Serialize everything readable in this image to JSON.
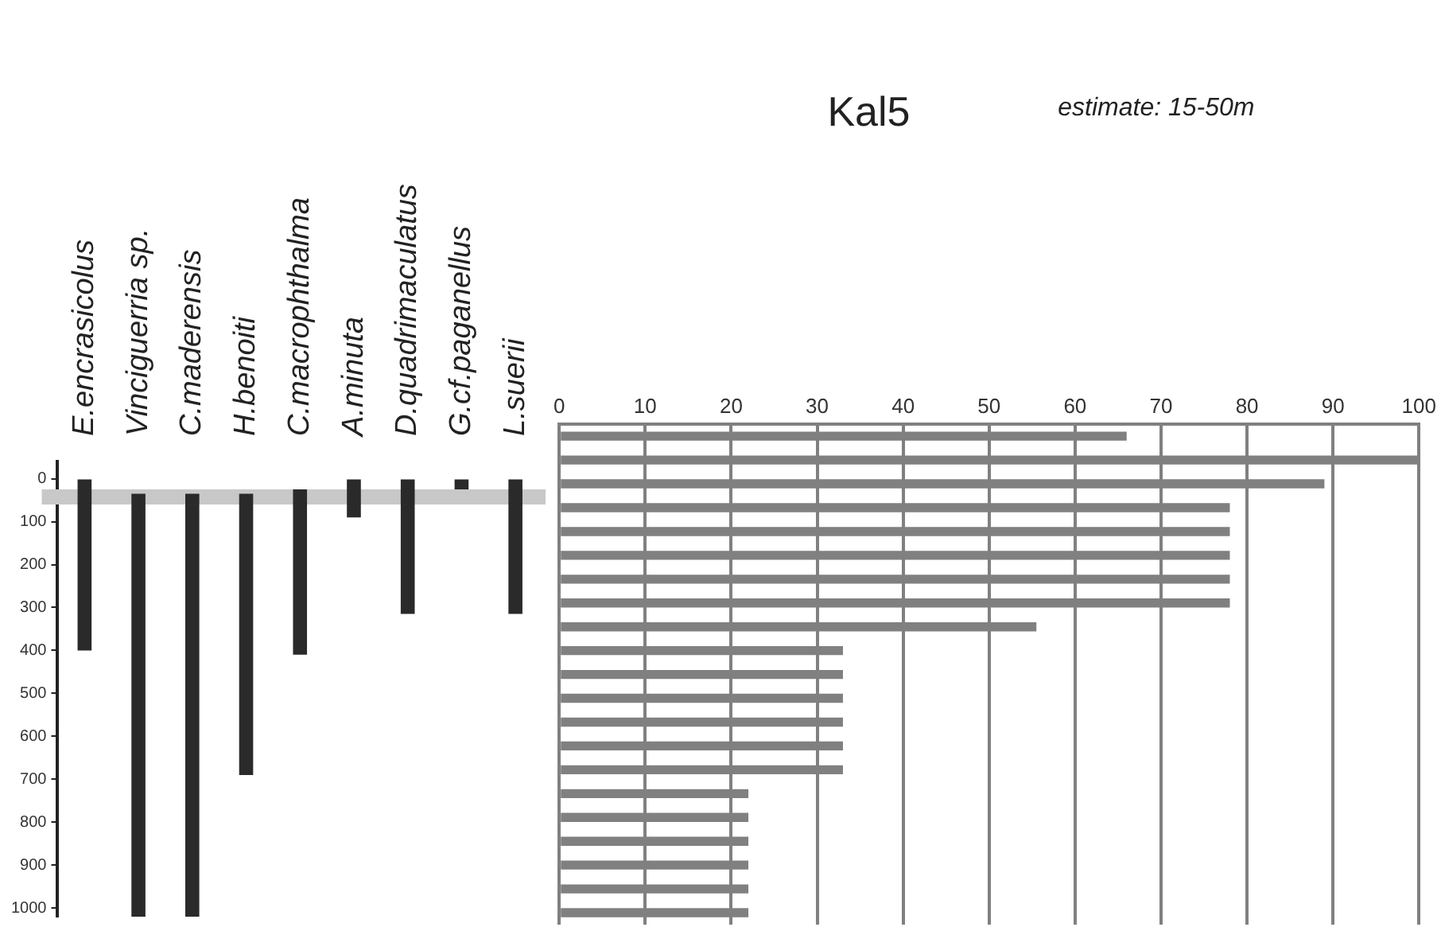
{
  "chart_data": [
    {
      "type": "bar",
      "categories": [
        "E.encrasicolus",
        "Vinciguerria sp.",
        "C.maderensis",
        "H.benoiti",
        "C.macrophthalma",
        "A.minuta",
        "D.quadrimaculatus",
        "G.cf.paganellus",
        "L.suerii"
      ],
      "base": [
        0,
        35,
        35,
        35,
        25,
        0,
        0,
        0,
        0
      ],
      "values": [
        400,
        985,
        985,
        655,
        385,
        90,
        315,
        25,
        315
      ],
      "color": "#2a2a2a",
      "ylim": [
        1020,
        -40
      ],
      "yticks": [
        0,
        100,
        200,
        300,
        400,
        500,
        600,
        700,
        800,
        900,
        1000
      ],
      "bands": [
        {
          "axis": "y",
          "from": 25,
          "to": 60,
          "color": "#c8c8c8"
        }
      ]
    },
    {
      "type": "bar",
      "orientation": "horizontal",
      "title": "Kal5",
      "annotations": [
        "estimate: 15-50m"
      ],
      "categories": [
        null,
        null,
        null,
        null,
        null,
        null,
        null,
        null,
        null,
        null,
        null,
        null,
        null,
        null,
        null,
        null,
        null,
        null,
        null,
        null,
        null
      ],
      "values": [
        66,
        100,
        89,
        78,
        78,
        78,
        78,
        78,
        55.5,
        33,
        33,
        33,
        33,
        33,
        33,
        22,
        22,
        22,
        22,
        22,
        22
      ],
      "color": "#808080",
      "xlim": [
        0,
        100
      ],
      "xticks": [
        0,
        10,
        20,
        30,
        40,
        50,
        60,
        70,
        80,
        90,
        100
      ],
      "grid": "x",
      "tick_labels": "x"
    }
  ]
}
